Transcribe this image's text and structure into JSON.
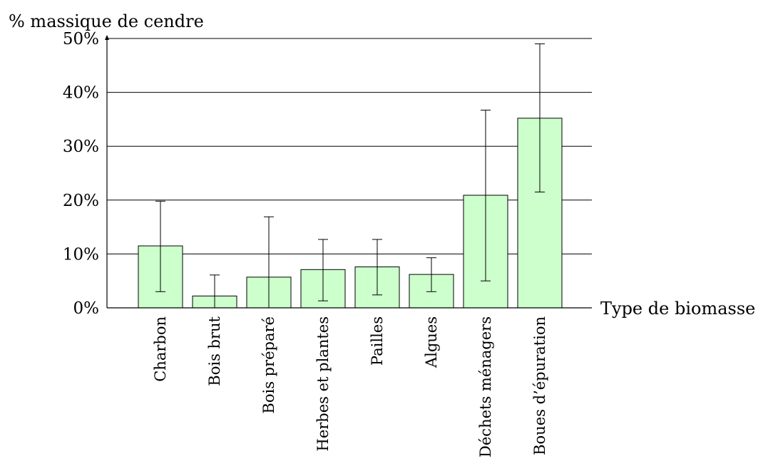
{
  "chart_data": {
    "type": "bar",
    "ylabel": "% massique de cendre",
    "xlabel": "Type de biomasse",
    "categories": [
      "Charbon",
      "Bois brut",
      "Bois préparé",
      "Herbes et plantes",
      "Pailles",
      "Algues",
      "Déchets ménagers",
      "Boues d’épuration"
    ],
    "values": [
      11.5,
      2.2,
      5.7,
      7.1,
      7.6,
      6.2,
      20.9,
      35.2
    ],
    "error_low": [
      3.0,
      0.0,
      0.0,
      1.3,
      2.4,
      3.0,
      5.0,
      21.5
    ],
    "error_high": [
      19.8,
      6.1,
      16.9,
      12.7,
      12.7,
      9.3,
      36.7,
      49.0
    ],
    "ylim": [
      0,
      50
    ],
    "yticks": [
      0,
      10,
      20,
      30,
      40,
      50
    ],
    "ytick_labels": [
      "0%",
      "10%",
      "20%",
      "30%",
      "40%",
      "50%"
    ],
    "grid": true,
    "bar_color": "#ccffcc"
  }
}
